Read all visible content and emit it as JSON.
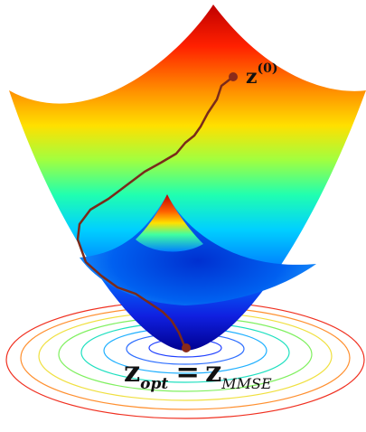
{
  "labels": {
    "start": {
      "base": "z",
      "superscript": "(0)"
    },
    "optimum": {
      "base": "z",
      "subscript": "opt",
      "equals": "=",
      "rhs_base": "z",
      "rhs_subscript": "MMSE"
    }
  }
}
